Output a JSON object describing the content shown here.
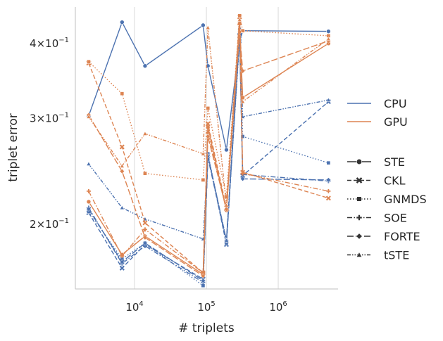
{
  "chart_data": {
    "type": "line",
    "xlabel": "# triplets",
    "ylabel": "triplet error",
    "xscale": "log",
    "yscale": "log",
    "xlim": [
      1500,
      6800000
    ],
    "ylim": [
      0.156,
      0.46
    ],
    "grid": "vertical",
    "legend_placement": "right",
    "x_ticks": [
      {
        "base": "10",
        "exp": "4",
        "value": 10000
      },
      {
        "base": "10",
        "exp": "5",
        "value": 100000
      },
      {
        "base": "10",
        "exp": "6",
        "value": 1000000
      }
    ],
    "y_ticks": [
      {
        "mantissa": "2",
        "base": "10",
        "exp": "−1",
        "value": 0.2
      },
      {
        "mantissa": "3",
        "base": "10",
        "exp": "−1",
        "value": 0.3
      },
      {
        "mantissa": "4",
        "base": "10",
        "exp": "−1",
        "value": 0.4
      }
    ],
    "hue_legend": [
      {
        "name": "CPU",
        "color": "#4c72b0"
      },
      {
        "name": "GPU",
        "color": "#dd8452"
      }
    ],
    "style_legend": [
      {
        "name": "STE",
        "dash": "solid",
        "marker": "circle"
      },
      {
        "name": "CKL",
        "dash": "dashed",
        "marker": "x"
      },
      {
        "name": "GNMDS",
        "dash": "dotted",
        "marker": "square"
      },
      {
        "name": "SOE",
        "dash": "dashdot",
        "marker": "plus"
      },
      {
        "name": "FORTE",
        "dash": "longdash",
        "marker": "diamond"
      },
      {
        "name": "tSTE",
        "dash": "dashdotdot",
        "marker": "triangle"
      }
    ],
    "x": [
      2300,
      6700,
      14000,
      90000,
      105000,
      190000,
      290000,
      320000,
      5000000
    ],
    "series": [
      {
        "hue": "CPU",
        "style": "STE",
        "values": [
          0.303,
          0.434,
          0.367,
          0.429,
          0.367,
          0.266,
          0.402,
          0.42,
          0.419
        ]
      },
      {
        "hue": "CPU",
        "style": "CKL",
        "values": [
          0.209,
          0.169,
          0.185,
          0.162,
          0.261,
          0.185,
          0.412,
          0.241,
          0.32
        ]
      },
      {
        "hue": "CPU",
        "style": "GNMDS",
        "values": [
          0.21,
          0.175,
          0.186,
          0.158,
          0.262,
          0.186,
          0.405,
          0.28,
          0.253
        ]
      },
      {
        "hue": "CPU",
        "style": "SOE",
        "values": [
          0.213,
          0.172,
          0.184,
          0.16,
          0.258,
          0.187,
          0.415,
          0.242,
          0.236
        ]
      },
      {
        "hue": "CPU",
        "style": "FORTE",
        "values": [
          0.212,
          0.173,
          0.186,
          0.161,
          0.26,
          0.188,
          0.41,
          0.238,
          0.237
        ]
      },
      {
        "hue": "CPU",
        "style": "tSTE",
        "values": [
          0.252,
          0.213,
          0.204,
          0.189,
          0.26,
          0.188,
          0.425,
          0.302,
          0.322
        ]
      },
      {
        "hue": "GPU",
        "style": "STE",
        "values": [
          0.218,
          0.178,
          0.191,
          0.165,
          0.29,
          0.211,
          0.432,
          0.325,
          0.4
        ]
      },
      {
        "hue": "GPU",
        "style": "CKL",
        "values": [
          0.371,
          0.269,
          0.201,
          0.166,
          0.294,
          0.213,
          0.443,
          0.244,
          0.221
        ]
      },
      {
        "hue": "GPU",
        "style": "GNMDS",
        "values": [
          0.373,
          0.33,
          0.243,
          0.237,
          0.312,
          0.222,
          0.445,
          0.42,
          0.412
        ]
      },
      {
        "hue": "GPU",
        "style": "SOE",
        "values": [
          0.227,
          0.177,
          0.196,
          0.166,
          0.284,
          0.211,
          0.43,
          0.243,
          0.227
        ]
      },
      {
        "hue": "GPU",
        "style": "FORTE",
        "values": [
          0.304,
          0.245,
          0.19,
          0.164,
          0.28,
          0.212,
          0.418,
          0.36,
          0.404
        ]
      },
      {
        "hue": "GPU",
        "style": "tSTE",
        "values": [
          0.302,
          0.25,
          0.283,
          0.262,
          0.425,
          0.215,
          0.438,
          0.32,
          0.407
        ]
      }
    ]
  }
}
